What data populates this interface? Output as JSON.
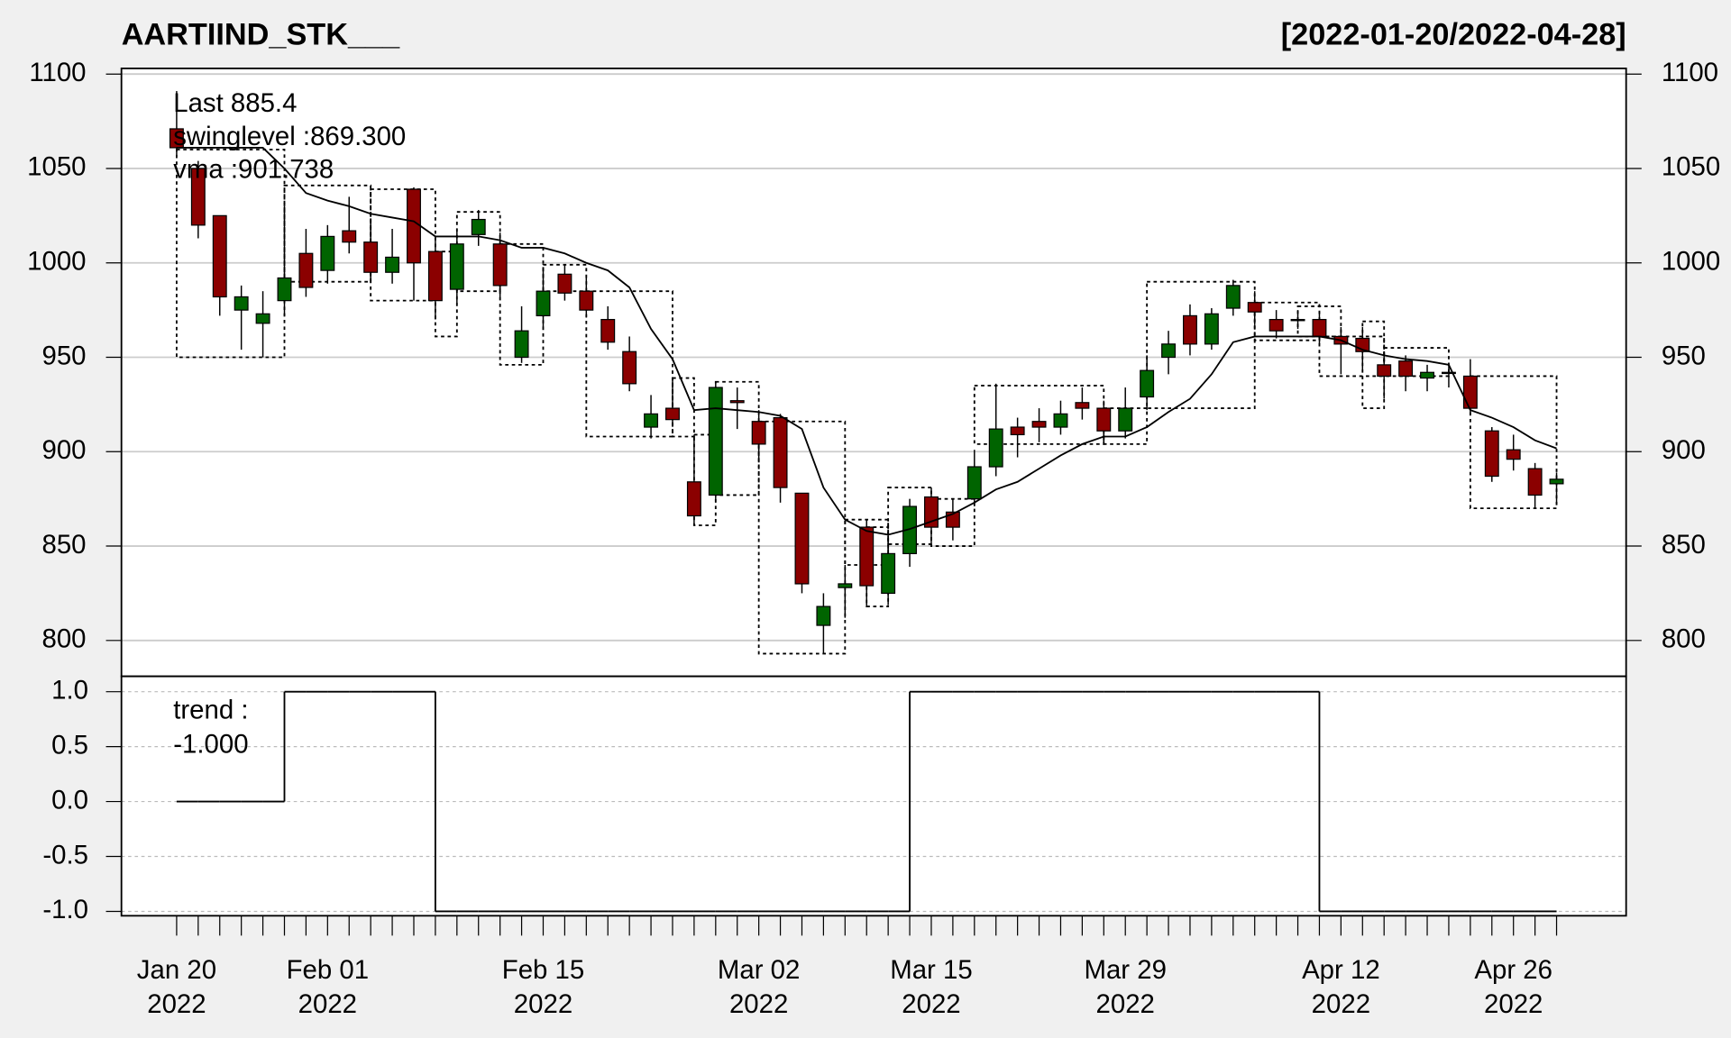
{
  "chart_data": [
    {
      "type": "candlestick",
      "title": "AARTIIND_STK___",
      "subtitle": "[2022-01-20/2022-04-28]",
      "legend": [
        "Last 885.4",
        "swinglevel :869.300",
        "vma :901.738"
      ],
      "legend_colors": [
        "#006400",
        "#000000",
        "#000000"
      ],
      "categories": [
        "Jan 20\n2022",
        null,
        null,
        null,
        null,
        null,
        null,
        "Feb 01\n2022",
        null,
        null,
        null,
        null,
        null,
        null,
        null,
        null,
        null,
        "Feb 15\n2022",
        null,
        null,
        null,
        null,
        null,
        null,
        null,
        null,
        null,
        "Mar 02\n2022",
        null,
        null,
        null,
        null,
        null,
        null,
        null,
        "Mar 15\n2022",
        null,
        null,
        null,
        null,
        null,
        null,
        null,
        null,
        "Mar 29\n2022",
        null,
        null,
        null,
        null,
        null,
        null,
        null,
        null,
        null,
        "Apr 12\n2022",
        null,
        null,
        null,
        null,
        null,
        null,
        null,
        "Apr 26\n2022",
        null,
        null
      ],
      "open": [
        1071,
        1050,
        1025,
        975,
        968,
        980,
        1005,
        996,
        1017,
        1011,
        995,
        1039,
        1006,
        986,
        1015,
        1010,
        950,
        972,
        994,
        985,
        970,
        953,
        913,
        923,
        884,
        877,
        927,
        916,
        918,
        878,
        808,
        828,
        860,
        825,
        846,
        876,
        868,
        875,
        892,
        913,
        916,
        913,
        926,
        923,
        911,
        929,
        950,
        972,
        957,
        976,
        979,
        970,
        970,
        970,
        961,
        960,
        946,
        948,
        939,
        942,
        940,
        911,
        901,
        891,
        883
      ],
      "high": [
        1091,
        1054,
        1025,
        988,
        985,
        1030,
        1018,
        1020,
        1035,
        1023,
        1018,
        1040,
        1012,
        1018,
        1028,
        1016,
        977,
        996,
        999,
        992,
        977,
        961,
        930,
        939,
        909,
        937,
        934,
        922,
        920,
        878,
        825,
        840,
        864,
        856,
        875,
        881,
        875,
        901,
        936,
        918,
        923,
        927,
        934,
        927,
        934,
        951,
        964,
        978,
        976,
        991,
        985,
        975,
        975,
        974,
        966,
        966,
        951,
        951,
        946,
        946,
        949,
        913,
        909,
        894,
        889
      ],
      "low": [
        1057,
        1013,
        972,
        954,
        950,
        972,
        982,
        989,
        1005,
        992,
        989,
        980,
        970,
        978,
        1009,
        981,
        947,
        966,
        980,
        971,
        954,
        932,
        907,
        914,
        861,
        873,
        912,
        896,
        873,
        825,
        793,
        812,
        818,
        819,
        839,
        851,
        853,
        871,
        887,
        897,
        905,
        909,
        917,
        904,
        907,
        922,
        941,
        951,
        954,
        972,
        967,
        960,
        965,
        957,
        941,
        943,
        928,
        932,
        932,
        934,
        920,
        884,
        890,
        870,
        872
      ],
      "close": [
        1061,
        1020,
        982,
        982,
        973,
        992,
        987,
        1014,
        1011,
        995,
        1003,
        1000,
        980,
        1010,
        1023,
        988,
        964,
        985,
        984,
        975,
        958,
        936,
        920,
        917,
        866,
        934,
        926,
        904,
        881,
        830,
        818,
        830,
        829,
        846,
        871,
        860,
        860,
        892,
        912,
        909,
        913,
        920,
        923,
        911,
        923,
        943,
        957,
        957,
        973,
        988,
        974,
        964,
        970,
        961,
        957,
        953,
        940,
        940,
        942,
        942,
        923,
        887,
        896,
        877,
        885.4
      ],
      "up_color": "#006400",
      "down_color": "#8b0000",
      "lines": [
        {
          "color": "#000000",
          "values": [
            1061,
            1061,
            1061,
            1061,
            1061,
            1050,
            1037,
            1033,
            1030,
            1026,
            1024,
            1022,
            1014,
            1014,
            1014,
            1012,
            1008,
            1008,
            1005,
            1000,
            996,
            987,
            965,
            949,
            922,
            923,
            922,
            921,
            919,
            912,
            881,
            864,
            858,
            856,
            859,
            863,
            867,
            873,
            880,
            884,
            891,
            898,
            904,
            908,
            908,
            913,
            921,
            928,
            941,
            958,
            961,
            961,
            961,
            961,
            959,
            954,
            951,
            949,
            948,
            946,
            922,
            918,
            913,
            906,
            901.738
          ]
        }
      ],
      "boxes": [
        {
          "x": [
            0,
            5
          ],
          "low": 950,
          "high": 1060
        },
        {
          "x": [
            5,
            9
          ],
          "low": 990,
          "high": 1041
        },
        {
          "x": [
            9,
            12
          ],
          "low": 980,
          "high": 1039
        },
        {
          "x": [
            12,
            13
          ],
          "low": 961,
          "high": 1006
        },
        {
          "x": [
            13,
            15
          ],
          "low": 985,
          "high": 1027
        },
        {
          "x": [
            15,
            17
          ],
          "low": 946,
          "high": 1010
        },
        {
          "x": [
            17,
            19
          ],
          "low": 985,
          "high": 999
        },
        {
          "x": [
            19,
            23
          ],
          "low": 908,
          "high": 985
        },
        {
          "x": [
            23,
            24
          ],
          "low": 908,
          "high": 939
        },
        {
          "x": [
            24,
            25
          ],
          "low": 861,
          "high": 909
        },
        {
          "x": [
            25,
            27
          ],
          "low": 877,
          "high": 937
        },
        {
          "x": [
            27,
            31
          ],
          "low": 793,
          "high": 916
        },
        {
          "x": [
            31,
            33
          ],
          "low": 840,
          "high": 864
        },
        {
          "x": [
            32,
            33
          ],
          "low": 818,
          "high": 860
        },
        {
          "x": [
            33,
            35
          ],
          "low": 851,
          "high": 881
        },
        {
          "x": [
            35,
            37
          ],
          "low": 850,
          "high": 875
        },
        {
          "x": [
            37,
            43
          ],
          "low": 904,
          "high": 935
        },
        {
          "x": [
            43,
            45
          ],
          "low": 904,
          "high": 923
        },
        {
          "x": [
            45,
            50
          ],
          "low": 923,
          "high": 990
        },
        {
          "x": [
            50,
            53
          ],
          "low": 959,
          "high": 979
        },
        {
          "x": [
            52,
            54
          ],
          "low": 961,
          "high": 977
        },
        {
          "x": [
            53,
            56
          ],
          "low": 940,
          "high": 961
        },
        {
          "x": [
            55,
            56
          ],
          "low": 923,
          "high": 969
        },
        {
          "x": [
            56,
            59
          ],
          "low": 940,
          "high": 955
        },
        {
          "x": [
            60,
            64
          ],
          "low": 870,
          "high": 940
        }
      ],
      "ylim": [
        781,
        1103
      ],
      "yticks": [
        800,
        850,
        900,
        950,
        1000,
        1050,
        1100
      ],
      "grid": true
    },
    {
      "type": "step",
      "legend": [
        "trend :",
        "-1.000"
      ],
      "values": [
        0,
        0,
        0,
        0,
        0,
        1,
        1,
        1,
        1,
        1,
        1,
        1,
        -1,
        -1,
        -1,
        -1,
        -1,
        -1,
        -1,
        -1,
        -1,
        -1,
        -1,
        -1,
        -1,
        -1,
        -1,
        -1,
        -1,
        -1,
        -1,
        -1,
        -1,
        -1,
        1,
        1,
        1,
        1,
        1,
        1,
        1,
        1,
        1,
        1,
        1,
        1,
        1,
        1,
        1,
        1,
        1,
        1,
        1,
        -1,
        -1,
        -1,
        -1,
        -1,
        -1,
        -1,
        -1,
        -1,
        -1,
        -1,
        -1
      ],
      "color": "#000000",
      "ylim": [
        -1.04,
        1.14
      ],
      "yticks": [
        {
          "value": -1,
          "label": "-1.0"
        },
        {
          "value": -0.5,
          "label": "-0.5"
        },
        {
          "value": 0,
          "label": "0.0"
        },
        {
          "value": 0.5,
          "label": "0.5"
        },
        {
          "value": 1,
          "label": "1.0"
        }
      ],
      "grid": true
    }
  ]
}
